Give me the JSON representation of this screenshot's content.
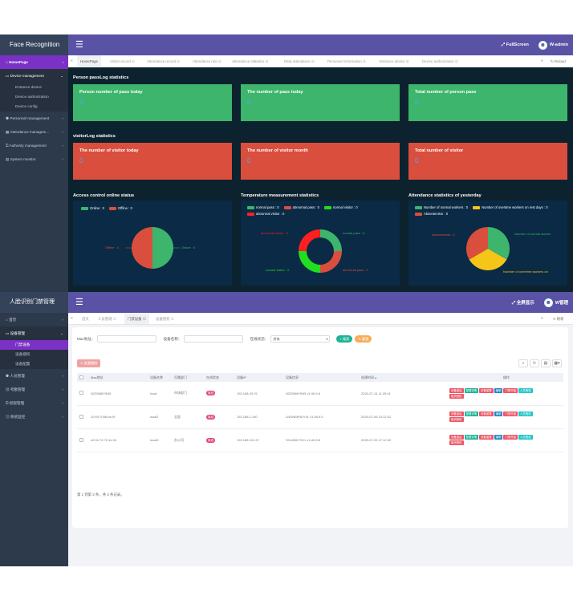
{
  "panel1": {
    "brand": "Face Recognition",
    "fullscreen": "FullScreen",
    "user": "W-admin",
    "sidebar": {
      "home": "HomePage",
      "device_management": "Device management",
      "device_subs": [
        "Entrance device",
        "Device authorization",
        "Device config"
      ],
      "items": [
        "Personnel management",
        "Attendance managem...",
        "Authority management",
        "System monitor"
      ]
    },
    "tabs": [
      "HomePage",
      "Visitor record",
      "Attendance record",
      "Attendance rule",
      "Attendance statistics",
      "Daily attendance",
      "Personnel information",
      "Entrance device",
      "Device authorization"
    ],
    "reload": "Reload",
    "passlog_title": "Person passLog statistics",
    "pass_cards": [
      {
        "title": "Person number of pass today",
        "value": "0"
      },
      {
        "title": "The number of pass today",
        "value": "0"
      },
      {
        "title": "Total number of person pass",
        "value": "0"
      }
    ],
    "visitorlog_title": "visitorLog statistics",
    "visitor_cards": [
      {
        "title": "The number of visitor today",
        "value": "0"
      },
      {
        "title": "The number of visitor month",
        "value": "0"
      },
      {
        "title": "Total number of visitor",
        "value": "0"
      }
    ],
    "charts_titles": [
      "Access control online status",
      "Temperature measurement statistics",
      "Attendance statistics of yesterday"
    ],
    "colors": {
      "topbar": "#5a52a4",
      "accent": "#7b31c5",
      "green": "#3db56c",
      "red": "#d94e3d",
      "yellow": "#f5c518",
      "bright_green": "#22dd22",
      "bright_red": "#ff1f1f"
    }
  },
  "chart_data": [
    {
      "type": "pie",
      "title": "Access control online status",
      "legend": [
        "Online : 0",
        "Offline : 0"
      ],
      "slices": [
        {
          "label": "Online : 0",
          "value": 0,
          "color": "#3db56c"
        },
        {
          "label": "Offline : 0",
          "value": 0,
          "color": "#d94e3d"
        }
      ]
    },
    {
      "type": "pie",
      "title": "Temperature measurement statistics",
      "legend": [
        "normal pass : 0",
        "abnormal pass : 0",
        "normal visitor : 0",
        "abnormal visitor : 0"
      ],
      "slices": [
        {
          "label": "normal pass : 0",
          "value": 0,
          "color": "#3db56c"
        },
        {
          "label": "abnormal pass : 0",
          "value": 0,
          "color": "#d94e3d"
        },
        {
          "label": "normal visitor : 0",
          "value": 0,
          "color": "#22dd22"
        },
        {
          "label": "abnormal visitor : 0",
          "value": 0,
          "color": "#ff1f1f"
        }
      ]
    },
    {
      "type": "pie",
      "title": "Attendance statistics of yesterday",
      "legend": [
        "Number of normal workers : 0",
        "Number of overtime workers on rest days : 0",
        "Absenteeism : 0"
      ],
      "slices": [
        {
          "label": "Number of normal worker",
          "value": 0,
          "color": "#3db56c"
        },
        {
          "label": "Number of overtime workers on",
          "value": 0,
          "color": "#f5c518"
        },
        {
          "label": "Absenteeism : 0",
          "value": 0,
          "color": "#d94e3d"
        }
      ]
    }
  ],
  "panel2": {
    "brand": "人脸识别门禁管理",
    "fullscreen": "全屏显示",
    "user": "W管理",
    "sidebar": {
      "home": "首页",
      "device_management": "设备管理",
      "device_subs": [
        "门禁设备",
        "设备授权",
        "设备配置"
      ],
      "items": [
        "人员管理",
        "考勤管理",
        "权限管理",
        "系统监控"
      ]
    },
    "tabs": [
      "首页",
      "人员管理",
      "门禁设备",
      "设备授权"
    ],
    "reload": "刷新",
    "search": {
      "mac_label": "Mac地址：",
      "name_label": "设备名称：",
      "status_label": "在线状态：",
      "status_value": "所有",
      "search_btn": "搜索",
      "reset_btn": "重置"
    },
    "delete_btn": "批量删除",
    "columns": [
      "Mac地址",
      "设备名称",
      "归属部门",
      "在线状态",
      "设备IP",
      "设备信息",
      "创建时间",
      "操作"
    ],
    "rows": [
      {
        "mac": "NZ53M8Y9N5",
        "name": "local",
        "dept": "市场部门",
        "status": "离线",
        "ip": "192.168.43.76",
        "info": "NZ53M8Y9N5 v1.96.9.8",
        "time": "2020-07-14 11:20:41"
      },
      {
        "mac": "10:93:7f:66:cd:9f",
        "name": "local2",
        "dept": "全部",
        "status": "离线",
        "ip": "192.168.1.100",
        "info": "LNGNB9HDY41 v1.96.9.0",
        "time": "2020-07-06 13:12:31"
      },
      {
        "mac": "c0:04:74:72:1b:34",
        "name": "local3",
        "dept": "办公司",
        "status": "离线",
        "ip": "192.168.124.37",
        "info": "SOU60K7SCL v1.66.9.8",
        "time": "2020-07-03 17:12:02"
      }
    ],
    "ops": [
      "设备重启",
      "配置详情",
      "设备重置",
      "编辑",
      "门禁开锁",
      "人员授权",
      "取消授权"
    ],
    "footer": "第 1 到第 3 条，共 3 条记录。"
  }
}
